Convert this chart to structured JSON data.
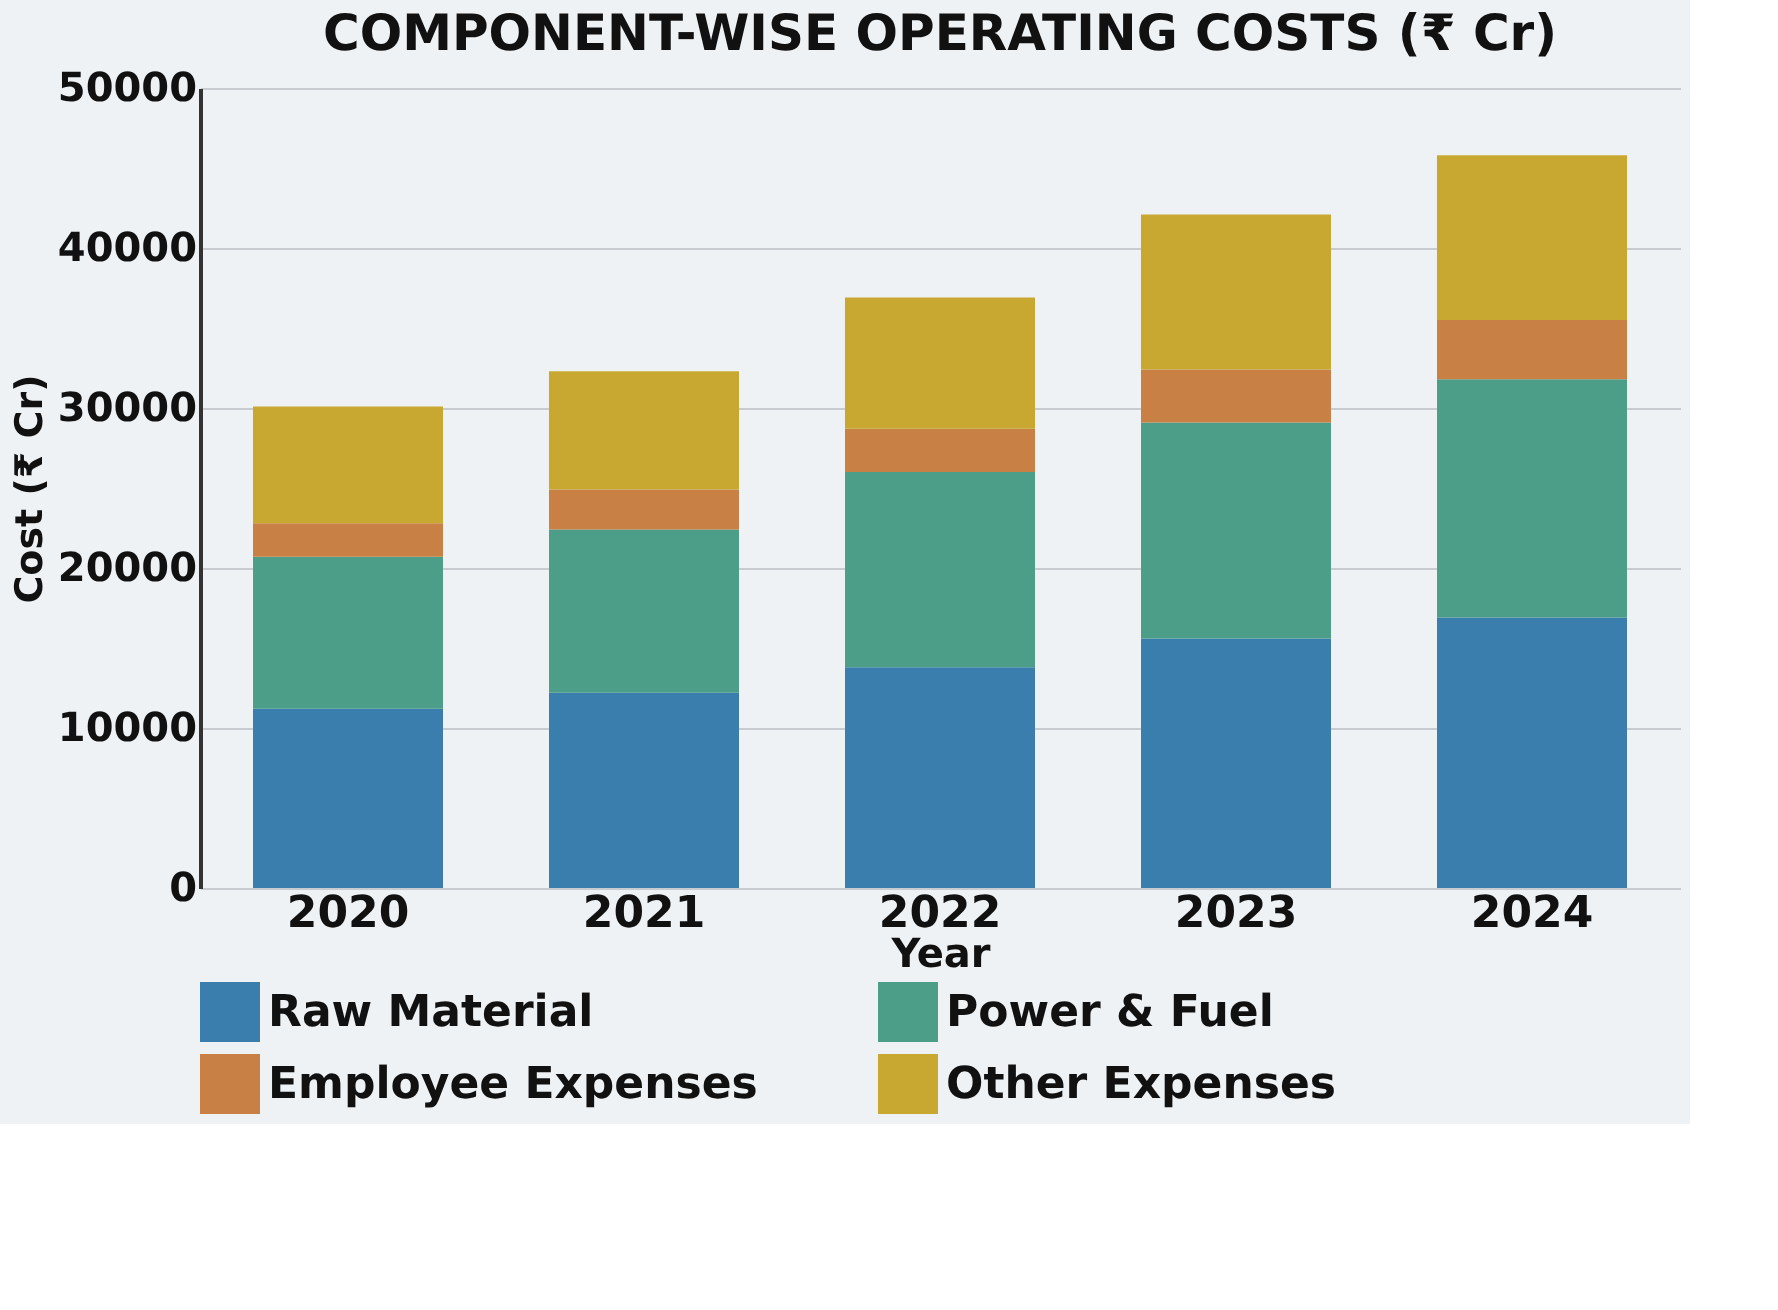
{
  "chart_data": {
    "type": "bar",
    "title": "COMPONENT-WISE OPERATING COSTS (₹ Cr)",
    "xlabel": "Year",
    "ylabel": "Cost (₹ Cr)",
    "categories": [
      "2020",
      "2021",
      "2022",
      "2023",
      "2024"
    ],
    "series": [
      {
        "name": "Raw Material",
        "color": "#3a7eae",
        "values": [
          11200,
          12200,
          13800,
          15600,
          16900
        ]
      },
      {
        "name": "Power & Fuel",
        "color": "#4c9e88",
        "values": [
          9500,
          10200,
          12200,
          13500,
          14900
        ]
      },
      {
        "name": "Employee Expenses",
        "color": "#c88045",
        "values": [
          2100,
          2500,
          2700,
          3300,
          3700
        ]
      },
      {
        "name": "Other Expenses",
        "color": "#c9a832",
        "values": [
          7300,
          7400,
          8200,
          9700,
          10300
        ]
      }
    ],
    "stacked": true,
    "ylim": [
      0,
      50000
    ],
    "yticks": [
      0,
      10000,
      20000,
      30000,
      40000,
      50000
    ],
    "grid": "y",
    "legend": "bottom"
  }
}
